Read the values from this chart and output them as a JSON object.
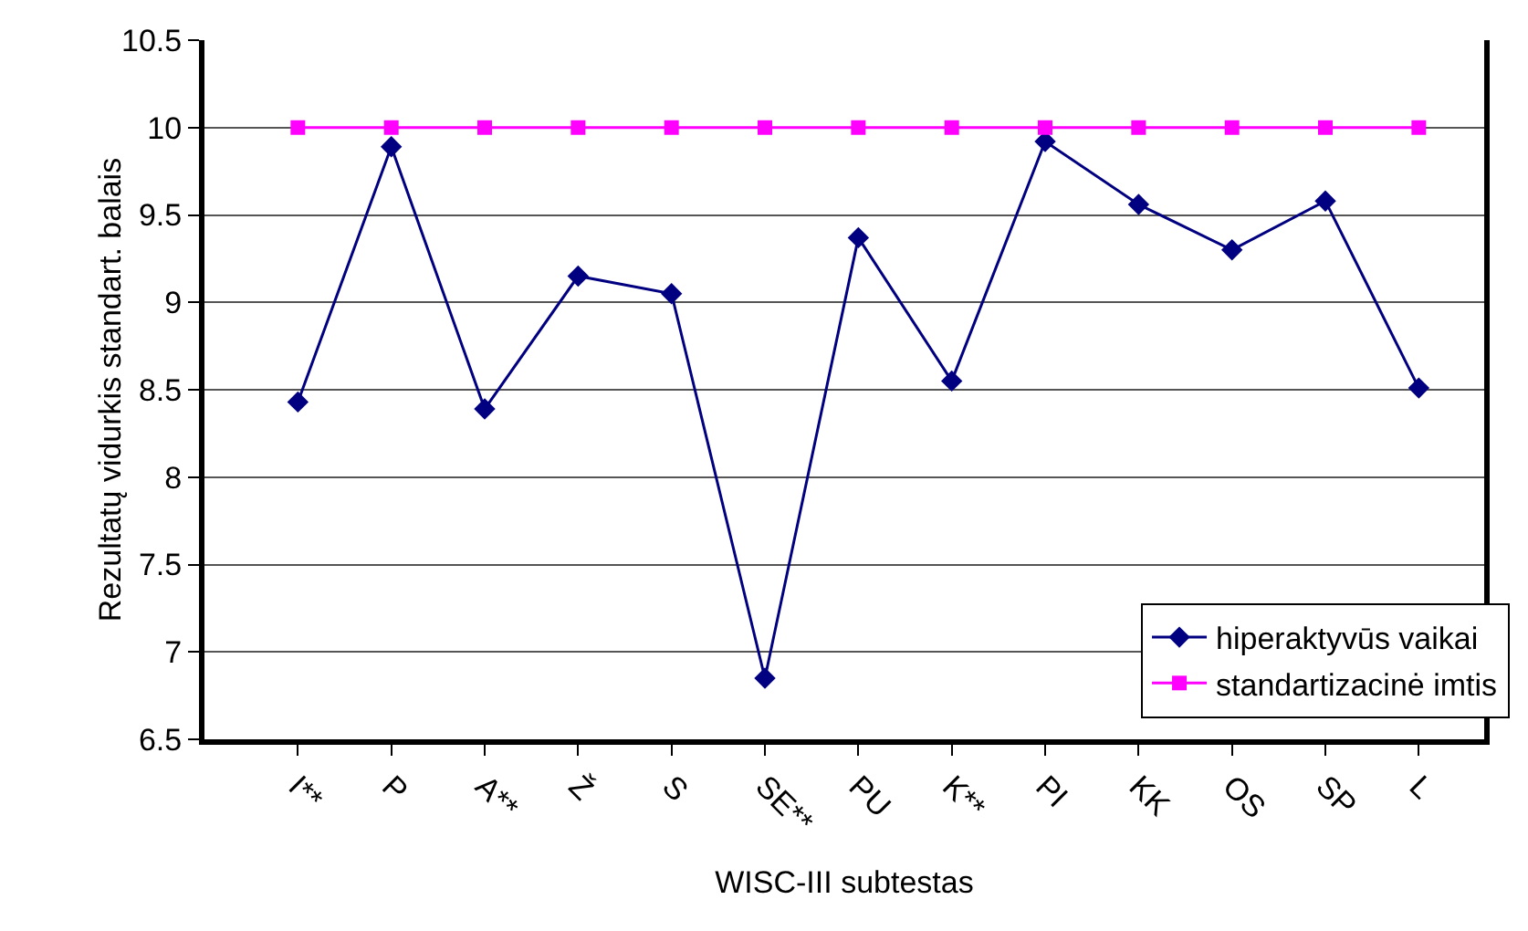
{
  "chart_data": {
    "type": "line",
    "xlabel": "WISC-III subtestas",
    "ylabel": "Rezultatų vidurkis standart. balais",
    "categories": [
      "I**",
      "P",
      "A**",
      "Ž",
      "S",
      "SE**",
      "PU",
      "K**",
      "PI",
      "KK",
      "OS",
      "SP",
      "L"
    ],
    "series": [
      {
        "name": "hiperaktyvūs vaikai",
        "color": "#000080",
        "marker": "diamond",
        "values": [
          8.43,
          9.89,
          8.39,
          9.15,
          9.05,
          6.85,
          9.37,
          8.55,
          9.92,
          9.56,
          9.3,
          9.58,
          8.51
        ]
      },
      {
        "name": "standartizacinė imtis",
        "color": "#ff00ff",
        "marker": "square",
        "values": [
          10,
          10,
          10,
          10,
          10,
          10,
          10,
          10,
          10,
          10,
          10,
          10,
          10
        ]
      }
    ],
    "ylim": [
      6.5,
      10.5
    ],
    "yticks": [
      6.5,
      7,
      7.5,
      8,
      8.5,
      9,
      9.5,
      10,
      10.5
    ],
    "grid": "y",
    "legend": "bottom right",
    "line_style": "solid"
  }
}
